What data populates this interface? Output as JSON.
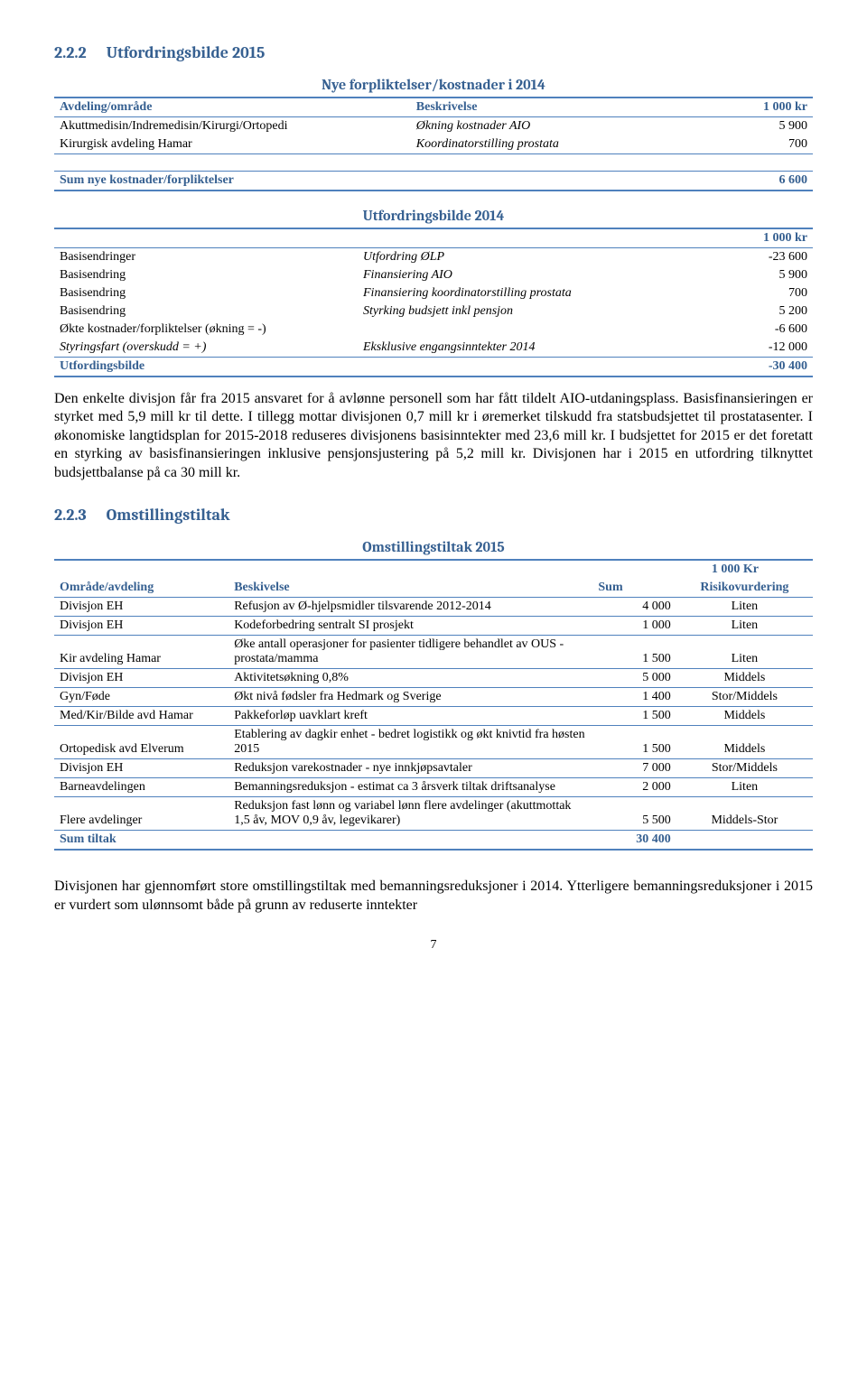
{
  "colors": {
    "heading": "#366091",
    "rule": "#4f81bd",
    "text": "#000000",
    "bg": "#ffffff"
  },
  "section1": {
    "num": "2.2.2",
    "title": "Utfordringsbilde 2015"
  },
  "table1": {
    "title": "Nye forpliktelser/kostnader i 2014",
    "h_area": "Avdeling/område",
    "h_desc": "Beskrivelse",
    "h_val": "1 000 kr",
    "rows": [
      {
        "a": "Akuttmedisin/Indremedisin/Kirurgi/Ortopedi",
        "b": "Økning kostnader AIO",
        "c": "5 900"
      },
      {
        "a": "Kirurgisk avdeling Hamar",
        "b": "Koordinatorstilling prostata",
        "c": "700"
      }
    ],
    "sum_label": "Sum nye kostnader/forpliktelser",
    "sum_val": "6 600"
  },
  "table2": {
    "title": "Utfordringsbilde 2014",
    "h_val": "1 000 kr",
    "rows": [
      {
        "a": "Basisendringer",
        "b": "Utfordring ØLP",
        "c": "-23 600",
        "ai": false,
        "bi": true
      },
      {
        "a": "Basisendring",
        "b": "Finansiering AIO",
        "c": "5 900",
        "ai": false,
        "bi": true
      },
      {
        "a": "Basisendring",
        "b": "Finansiering koordinatorstilling prostata",
        "c": "700",
        "ai": false,
        "bi": true
      },
      {
        "a": "Basisendring",
        "b": "Styrking budsjett inkl pensjon",
        "c": "5 200",
        "ai": false,
        "bi": true
      },
      {
        "a": "Økte kostnader/forpliktelser (økning = -)",
        "b": "",
        "c": "-6 600",
        "ai": false,
        "bi": false
      },
      {
        "a": "Styringsfart  (overskudd = +)",
        "b": "Eksklusive engangsinntekter 2014",
        "c": "-12 000",
        "ai": true,
        "bi": true
      }
    ],
    "sum_label": "Utfordingsbilde",
    "sum_val": "-30 400"
  },
  "para1": "Den enkelte divisjon får fra 2015 ansvaret for å avlønne personell som har fått tildelt AIO-utdaningsplass. Basisfinansieringen er styrket med 5,9 mill kr til dette. I tillegg mottar divisjonen 0,7 mill kr i øremerket tilskudd fra statsbudsjettet til prostatasenter. I økonomiske langtidsplan for 2015-2018 reduseres divisjonens basisinntekter med 23,6 mill kr. I budsjettet for 2015 er det foretatt en styrking av basisfinansieringen inklusive pensjonsjustering på 5,2 mill kr. Divisjonen har i 2015 en utfordring tilknyttet budsjettbalanse på ca 30 mill kr.",
  "section2": {
    "num": "2.2.3",
    "title": "Omstillingstiltak"
  },
  "table3": {
    "title": "Omstillingstiltak 2015",
    "h_val": "1 000 Kr",
    "h_area": "Område/avdeling",
    "h_desc": "Beskivelse",
    "h_sum": "Sum",
    "h_risk": "Risikovurdering",
    "rows": [
      {
        "a": "Divisjon EH",
        "b": "Refusjon av Ø-hjelpsmidler tilsvarende 2012-2014",
        "c": "4 000",
        "d": "Liten"
      },
      {
        "a": "Divisjon EH",
        "b": "Kodeforbedring sentralt SI prosjekt",
        "c": "1 000",
        "d": "Liten"
      },
      {
        "a": "Kir avdeling Hamar",
        "b": "Øke antall operasjoner for pasienter tidligere behandlet av OUS - prostata/mamma",
        "c": "1 500",
        "d": "Liten"
      },
      {
        "a": "Divisjon EH",
        "b": "Aktivitetsøkning 0,8%",
        "c": "5 000",
        "d": "Middels"
      },
      {
        "a": "Gyn/Føde",
        "b": "Økt nivå fødsler fra Hedmark og Sverige",
        "c": "1 400",
        "d": "Stor/Middels"
      },
      {
        "a": "Med/Kir/Bilde avd Hamar",
        "b": "Pakkeforløp uavklart kreft",
        "c": "1 500",
        "d": "Middels"
      },
      {
        "a": "Ortopedisk avd Elverum",
        "b": "Etablering av dagkir enhet - bedret logistikk og økt knivtid fra høsten 2015",
        "c": "1 500",
        "d": "Middels"
      },
      {
        "a": "Divisjon EH",
        "b": "Reduksjon varekostnader - nye innkjøpsavtaler",
        "c": "7 000",
        "d": "Stor/Middels"
      },
      {
        "a": "Barneavdelingen",
        "b": "Bemanningsreduksjon - estimat ca 3 årsverk tiltak driftsanalyse",
        "c": "2 000",
        "d": "Liten"
      },
      {
        "a": "Flere avdelinger",
        "b": "Reduksjon fast lønn og variabel lønn flere avdelinger (akuttmottak 1,5 åv, MOV 0,9 åv, legevikarer)",
        "c": "5 500",
        "d": "Middels-Stor"
      }
    ],
    "sum_label": "Sum tiltak",
    "sum_val": "30 400"
  },
  "para2": "Divisjonen har gjennomført store omstillingstiltak med bemanningsreduksjoner i 2014. Ytterligere bemanningsreduksjoner i 2015 er vurdert som ulønnsomt både på grunn av reduserte inntekter",
  "page_num": "7"
}
